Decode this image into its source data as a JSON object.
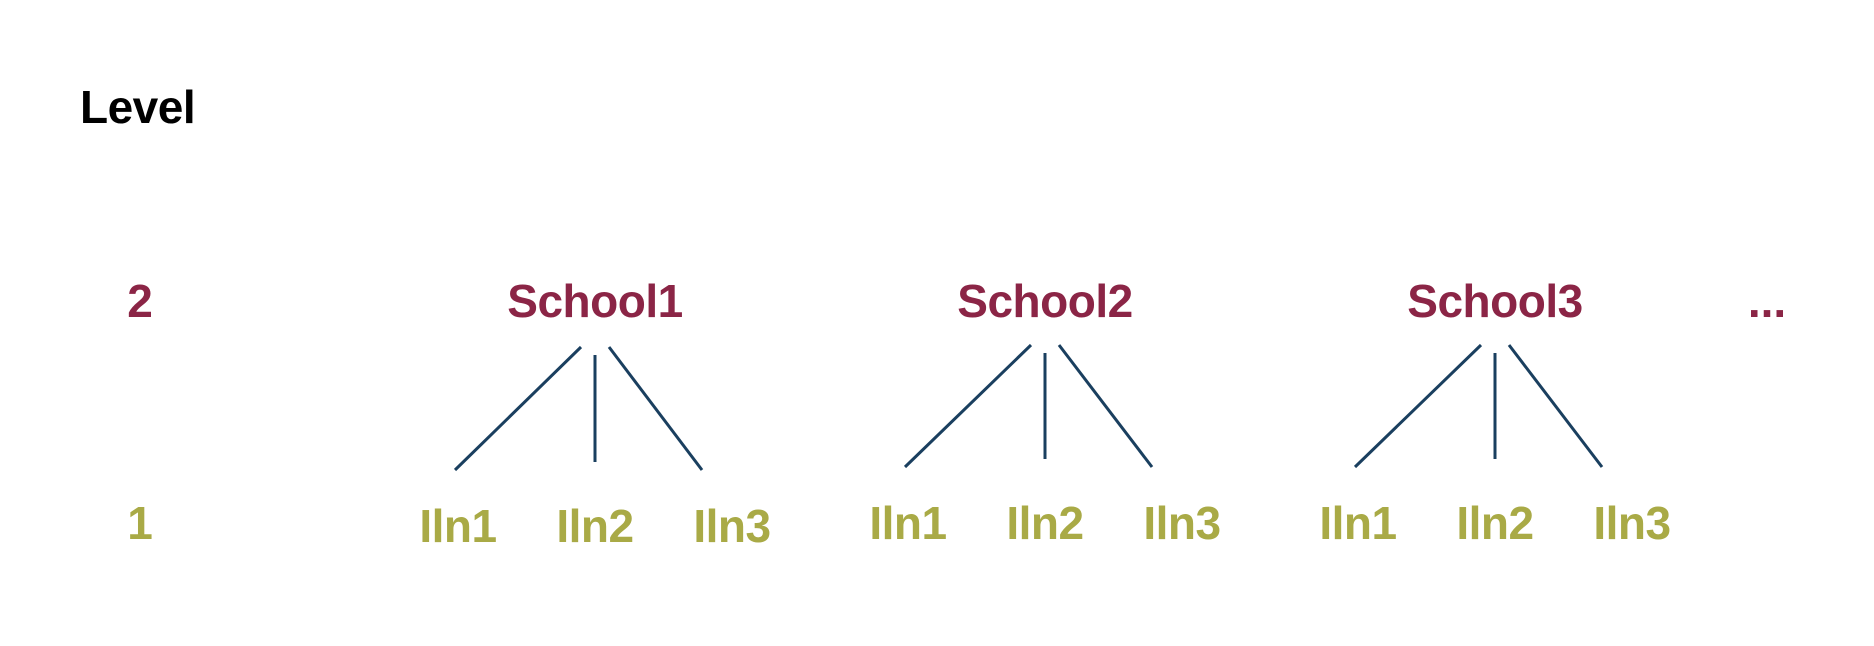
{
  "heading": "Level",
  "levels": {
    "upper": "2",
    "lower": "1"
  },
  "colors": {
    "heading": "#000000",
    "level2": "#8b2546",
    "level1": "#a9aa46",
    "link": "#1a3f5f"
  },
  "groups": [
    {
      "parent": "School1",
      "children": [
        "Iln1",
        "Iln2",
        "Iln3"
      ]
    },
    {
      "parent": "School2",
      "children": [
        "Iln1",
        "Iln2",
        "Iln3"
      ]
    },
    {
      "parent": "School3",
      "children": [
        "Iln1",
        "Iln2",
        "Iln3"
      ]
    }
  ],
  "continuation": "..."
}
